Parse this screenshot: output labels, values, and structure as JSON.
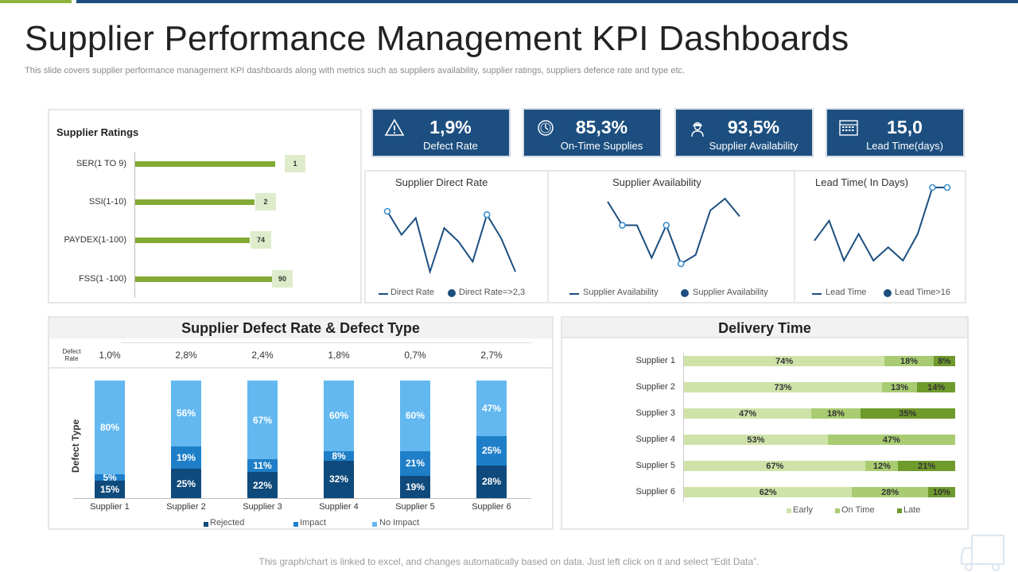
{
  "title": "Supplier Performance Management KPI Dashboards",
  "subtitle": "This slide covers supplier performance management KPI dashboards along with metrics such as suppliers availability, supplier ratings, suppliers defence rate and type etc.",
  "footer": "This graph/chart is linked to excel, and changes automatically based on data. Just left click on it and select “Edit Data”.",
  "colors": {
    "navy": "#1c4f80",
    "green": "#82aa34",
    "light_blue": "#63b8f0",
    "mid_blue": "#1e7fc8",
    "dark_blue": "#0f4a7c",
    "early": "#cfe3a9",
    "on_time": "#a9cc72",
    "late": "#6f9a2c"
  },
  "kpis": [
    {
      "value": "1,9%",
      "label": "Defect Rate",
      "icon": "warning-icon"
    },
    {
      "value": "85,3%",
      "label": "On-Time Supplies",
      "icon": "clock-icon"
    },
    {
      "value": "93,5%",
      "label": "Supplier Availability",
      "icon": "worker-icon"
    },
    {
      "value": "15,0",
      "label": "Lead Time(days)",
      "icon": "calendar-icon"
    }
  ],
  "ratings": {
    "title": "Supplier Ratings",
    "items": [
      {
        "label": "SER(1 TO 9)",
        "badge": "1"
      },
      {
        "label": "SSI(1-10)",
        "badge": "2"
      },
      {
        "label": "PAYDEX(1-100)",
        "badge": "74"
      },
      {
        "label": "FSS(1 -100)",
        "badge": "90"
      }
    ]
  },
  "sparklines": [
    {
      "title": "Supplier Direct Rate",
      "legend_line": "Direct Rate",
      "legend_dot": "Direct Rate=>2,3"
    },
    {
      "title": "Supplier Availability",
      "legend_line": "Supplier Availability",
      "legend_dot": "Supplier Availability"
    },
    {
      "title": "Lead Time( In Days)",
      "legend_line": "Lead Time",
      "legend_dot": "Lead Time>16"
    }
  ],
  "defect": {
    "title": "Supplier Defect Rate & Defect Type",
    "rate_label": "Defect Rate",
    "y_title": "Defect Type",
    "legend": [
      "Rejected",
      "Impact",
      "No Impact"
    ]
  },
  "delivery": {
    "title": "Delivery Time",
    "legend": [
      "Early",
      "On Time",
      "Late"
    ]
  },
  "chart_data": [
    {
      "type": "bar",
      "title": "Supplier Ratings",
      "orientation": "horizontal",
      "categories": [
        "SER(1 TO 9)",
        "SSI(1-10)",
        "PAYDEX(1-100)",
        "FSS(1 -100)"
      ],
      "values": [
        1,
        2,
        74,
        90
      ]
    },
    {
      "type": "line",
      "title": "Supplier Direct Rate",
      "values": [
        2.4,
        1.7,
        2.2,
        0.6,
        1.9,
        1.5,
        0.9,
        2.3,
        1.6,
        0.6
      ],
      "highlight_indices": [
        0,
        7
      ]
    },
    {
      "type": "line",
      "title": "Supplier Availability",
      "values": [
        93,
        85,
        85,
        74,
        85,
        72,
        75,
        90,
        94,
        88
      ],
      "highlight_indices": [
        1,
        4,
        5
      ]
    },
    {
      "type": "line",
      "title": "Lead Time( In Days)",
      "values": [
        11,
        14,
        8,
        12,
        8,
        10,
        8,
        12,
        19,
        19
      ],
      "highlight_indices": [
        8,
        9
      ]
    },
    {
      "type": "bar",
      "title": "Supplier Defect Rate & Defect Type",
      "stacked": true,
      "categories": [
        "Supplier 1",
        "Supplier 2",
        "Supplier 3",
        "Supplier 4",
        "Supplier 5",
        "Supplier 6"
      ],
      "defect_rate": [
        "1,0%",
        "2,8%",
        "2,4%",
        "1,8%",
        "0,7%",
        "2,7%"
      ],
      "series": [
        {
          "name": "Rejected",
          "values": [
            15,
            25,
            22,
            32,
            19,
            28
          ]
        },
        {
          "name": "Impact",
          "values": [
            5,
            19,
            11,
            8,
            21,
            25
          ]
        },
        {
          "name": "No Impact",
          "values": [
            80,
            56,
            67,
            60,
            60,
            47
          ]
        }
      ]
    },
    {
      "type": "bar",
      "title": "Delivery Time",
      "stacked": true,
      "orientation": "horizontal",
      "categories": [
        "Supplier 1",
        "Supplier 2",
        "Supplier 3",
        "Supplier 4",
        "Supplier 5",
        "Supplier 6"
      ],
      "series": [
        {
          "name": "Early",
          "values": [
            74,
            73,
            47,
            53,
            67,
            62
          ]
        },
        {
          "name": "On Time",
          "values": [
            18,
            13,
            18,
            47,
            12,
            28
          ]
        },
        {
          "name": "Late",
          "values": [
            8,
            14,
            35,
            0,
            21,
            10
          ]
        }
      ]
    }
  ]
}
